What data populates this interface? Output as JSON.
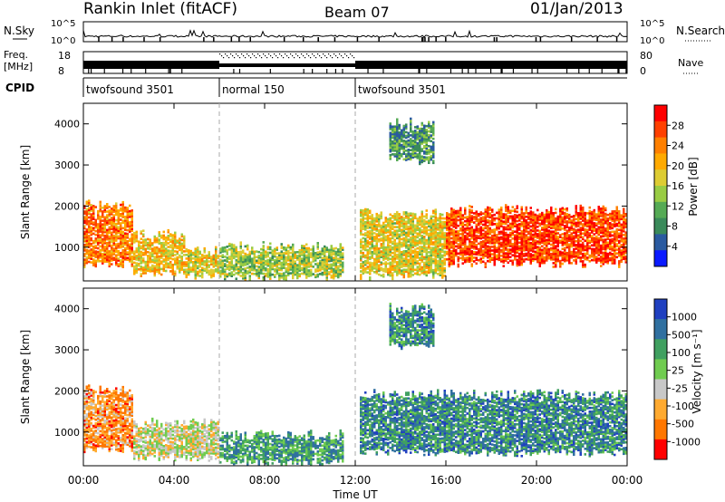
{
  "header": {
    "radar_title": "Rankin Inlet (fitACF)",
    "beam": "Beam 07",
    "date": "01/Jan/2013"
  },
  "top_panels": {
    "nsky_label": "N.Sky",
    "nsearch_label": "N.Search",
    "nsky_ticks": [
      "10^5",
      "10^0"
    ],
    "freq_label_1": "Freq.",
    "freq_label_2": "[MHz]",
    "freq_ticks": [
      "18",
      "8"
    ],
    "nave_label": "Nave",
    "nave_ticks": [
      "80",
      "0"
    ],
    "cpid_label": "CPID",
    "cpid_segments": [
      {
        "name": "twofsound 3501",
        "start_hr": 0,
        "end_hr": 6
      },
      {
        "name": "normal 150",
        "start_hr": 6,
        "end_hr": 12
      },
      {
        "name": "twofsound 3501",
        "start_hr": 12,
        "end_hr": 24
      }
    ]
  },
  "chart_data": [
    {
      "type": "heatmap",
      "panel": "power",
      "ylabel": "Slant Range [km]",
      "yticks": [
        "1000",
        "2000",
        "3000",
        "4000"
      ],
      "ylim": [
        180,
        4500
      ],
      "xlim": [
        0,
        24
      ],
      "colorbar_label": "Power [dB]",
      "colorbar_ticks": [
        "28",
        "24",
        "20",
        "16",
        "12",
        "8",
        "4"
      ],
      "colors": [
        "#ff0000",
        "#ff4000",
        "#ff8000",
        "#ffaa00",
        "#ddcc33",
        "#99cc44",
        "#55aa55",
        "#3a8a5a",
        "#2a5aa0",
        "#0a1aff"
      ],
      "regions": [
        {
          "t0": 0.0,
          "t1": 2.2,
          "r0": 600,
          "r1": 2000,
          "level": 0.75
        },
        {
          "t0": 2.2,
          "t1": 4.5,
          "r0": 380,
          "r1": 1300,
          "level": 0.6
        },
        {
          "t0": 4.5,
          "t1": 6.0,
          "r0": 300,
          "r1": 900,
          "level": 0.55
        },
        {
          "t0": 6.0,
          "t1": 11.5,
          "r0": 250,
          "r1": 1000,
          "level": 0.45
        },
        {
          "t0": 12.2,
          "t1": 16.0,
          "r0": 300,
          "r1": 1800,
          "level": 0.55
        },
        {
          "t0": 16.0,
          "t1": 24.0,
          "r0": 600,
          "r1": 1900,
          "level": 0.85
        },
        {
          "t0": 13.5,
          "t1": 15.5,
          "r0": 3100,
          "r1": 4000,
          "level": 0.3
        }
      ]
    },
    {
      "type": "heatmap",
      "panel": "velocity",
      "ylabel": "Slant Range [km]",
      "yticks": [
        "1000",
        "2000",
        "3000",
        "4000"
      ],
      "ylim": [
        180,
        4500
      ],
      "xlim": [
        0,
        24
      ],
      "xticks": [
        "00:00",
        "04:00",
        "08:00",
        "12:00",
        "16:00",
        "20:00",
        "00:00"
      ],
      "xlabel": "Time UT",
      "colorbar_label": "Velocity [m s⁻¹]",
      "colorbar_ticks": [
        "1000",
        "500",
        "100",
        "25",
        "-25",
        "-100",
        "-500",
        "-1000"
      ],
      "colors": [
        "#2040c0",
        "#3070a0",
        "#40a060",
        "#70cc50",
        "#c8c8c8",
        "#ffaa30",
        "#ff7700",
        "#ff0000"
      ],
      "regions": [
        {
          "t0": 0.0,
          "t1": 2.2,
          "r0": 600,
          "r1": 2000,
          "level": 0.25
        },
        {
          "t0": 2.2,
          "t1": 6.0,
          "r0": 380,
          "r1": 1200,
          "level": 0.45
        },
        {
          "t0": 6.0,
          "t1": 11.5,
          "r0": 250,
          "r1": 900,
          "level": 0.7
        },
        {
          "t0": 12.2,
          "t1": 24.0,
          "r0": 500,
          "r1": 1900,
          "level": 0.75
        },
        {
          "t0": 13.5,
          "t1": 15.5,
          "r0": 3100,
          "r1": 4000,
          "level": 0.75
        }
      ]
    }
  ]
}
